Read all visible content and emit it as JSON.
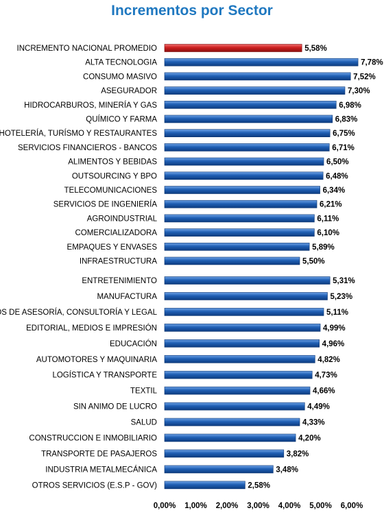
{
  "chart_data": {
    "type": "bar",
    "orientation": "horizontal",
    "title": "Incrementos por Sector",
    "highlight_color": "#cc1f1f",
    "bar_color": "#1f5fb4",
    "x_ticks": [
      "0,00%",
      "1,00%",
      "2,00%",
      "3,00%",
      "4,00%",
      "5,00%",
      "6,00%"
    ],
    "xlim": [
      0,
      6.5
    ],
    "grid": false,
    "groups": [
      {
        "categories": [
          "INCREMENTO NACIONAL PROMEDIO",
          "ALTA TECNOLOGIA",
          "CONSUMO MASIVO",
          "ASEGURADOR",
          "HIDROCARBUROS, MINERÍA Y GAS",
          "QUÍMICO Y FARMA",
          "HOTELERÍA, TURÍSMO Y RESTAURANTES",
          "SERVICIOS FINANCIEROS - BANCOS",
          "ALIMENTOS Y BEBIDAS",
          "OUTSOURCING Y BPO",
          "TELECOMUNICACIONES",
          "SERVICIOS DE INGENIERÍA",
          "AGROINDUSTRIAL",
          "COMERCIALIZADORA",
          "EMPAQUES Y ENVASES",
          "INFRAESTRUCTURA"
        ],
        "values": [
          5.58,
          7.78,
          7.52,
          7.3,
          6.98,
          6.83,
          6.75,
          6.71,
          6.5,
          6.48,
          6.34,
          6.21,
          6.11,
          6.1,
          5.89,
          5.5
        ],
        "value_labels": [
          "5,58%",
          "7,78%",
          "7,52%",
          "7,30%",
          "6,98%",
          "6,83%",
          "6,75%",
          "6,71%",
          "6,50%",
          "6,48%",
          "6,34%",
          "6,21%",
          "6,11%",
          "6,10%",
          "5,89%",
          "5,50%"
        ],
        "bar_lengths_x": [
          4.4,
          6.2,
          5.96,
          5.78,
          5.5,
          5.38,
          5.3,
          5.28,
          5.1,
          5.08,
          4.98,
          4.88,
          4.8,
          4.8,
          4.64,
          4.33
        ]
      },
      {
        "categories": [
          "ENTRETENIMIENTO",
          "MANUFACTURA",
          "SERVICIOS DE ASESORÍA, CONSULTORÍA Y LEGAL",
          "EDITORIAL, MEDIOS E IMPRESIÓN",
          "EDUCACIÓN",
          "AUTOMOTORES Y MAQUINARIA",
          "LOGÍSTICA Y TRANSPORTE",
          "TEXTIL",
          "SIN ANIMO DE LUCRO",
          "SALUD",
          "CONSTRUCCION E INMOBILIARIO",
          "TRANSPORTE DE PASAJEROS",
          "INDUSTRIA METALMECÁNICA",
          "OTROS SERVICIOS (E.S.P - GOV)"
        ],
        "values": [
          5.31,
          5.23,
          5.11,
          4.99,
          4.96,
          4.82,
          4.73,
          4.66,
          4.49,
          4.33,
          4.2,
          3.82,
          3.48,
          2.58
        ],
        "value_labels": [
          "5,31%",
          "5,23%",
          "5,11%",
          "4,99%",
          "4,96%",
          "4,82%",
          "4,73%",
          "4,66%",
          "4,49%",
          "4,33%",
          "4,20%",
          "3,82%",
          "3,48%",
          "2,58%"
        ],
        "bar_lengths_x": [
          5.3,
          5.22,
          5.1,
          4.99,
          4.96,
          4.82,
          4.73,
          4.66,
          4.49,
          4.33,
          4.2,
          3.82,
          3.48,
          2.58
        ]
      }
    ]
  }
}
